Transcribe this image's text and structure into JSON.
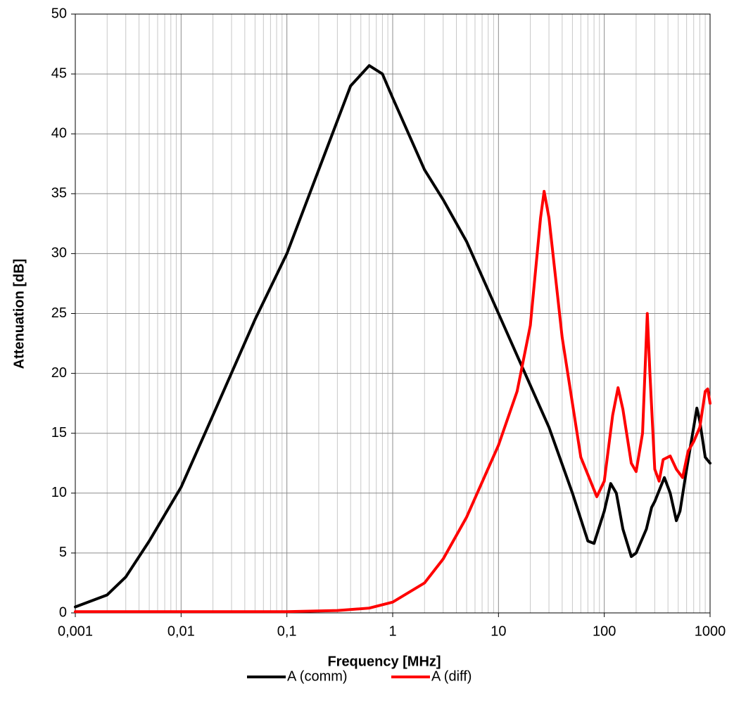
{
  "chart_data": {
    "type": "line",
    "x_label": "Frequency [MHz]",
    "y_label": "Attenuation [dB]",
    "xscale": "log",
    "xlim": [
      0.001,
      1000
    ],
    "xticks": [
      {
        "value": 0.001,
        "label": "0,001"
      },
      {
        "value": 0.01,
        "label": "0,01"
      },
      {
        "value": 0.1,
        "label": "0,1"
      },
      1,
      10,
      100,
      1000
    ],
    "ylim": [
      0,
      50
    ],
    "yticks": [
      0,
      5,
      10,
      15,
      20,
      25,
      30,
      35,
      40,
      45,
      50
    ],
    "grid": true,
    "minor_grid": true,
    "legend": "bottom",
    "series": [
      {
        "name": "A (comm)",
        "color": "#000000",
        "x": [
          0.001,
          0.002,
          0.003,
          0.005,
          0.01,
          0.02,
          0.05,
          0.1,
          0.2,
          0.4,
          0.6,
          0.8,
          1,
          2,
          3,
          5,
          10,
          20,
          30,
          50,
          70,
          80,
          100,
          115,
          130,
          150,
          180,
          200,
          250,
          280,
          300,
          370,
          420,
          480,
          520,
          600,
          700,
          750,
          800,
          900,
          1000
        ],
        "values": [
          0.5,
          1.5,
          3,
          6,
          10.5,
          16.5,
          24.5,
          30,
          37,
          44,
          45.7,
          45,
          43,
          37,
          34.5,
          31,
          25,
          19,
          15.5,
          10,
          6,
          5.8,
          8.5,
          10.8,
          10,
          7,
          4.7,
          5,
          7,
          8.8,
          9.3,
          11.3,
          10,
          7.7,
          8.5,
          12,
          15.5,
          17.1,
          16,
          13,
          12.5
        ]
      },
      {
        "name": "A (diff)",
        "color": "#ff0000",
        "x": [
          0.001,
          0.1,
          0.3,
          0.6,
          1,
          2,
          3,
          5,
          10,
          15,
          20,
          25,
          27,
          30,
          40,
          60,
          85,
          100,
          120,
          135,
          150,
          180,
          200,
          230,
          255,
          270,
          300,
          330,
          360,
          420,
          480,
          550,
          620,
          700,
          800,
          900,
          950,
          1000
        ],
        "values": [
          0.1,
          0.1,
          0.2,
          0.4,
          0.9,
          2.5,
          4.5,
          8,
          14,
          18.5,
          24,
          33,
          35.2,
          33,
          23,
          13,
          9.7,
          11,
          16.5,
          18.8,
          17,
          12.5,
          11.8,
          15,
          25,
          20,
          12,
          11,
          12.8,
          13.1,
          12,
          11.3,
          13.5,
          14.3,
          15.5,
          18.5,
          18.7,
          17.5
        ]
      }
    ]
  }
}
